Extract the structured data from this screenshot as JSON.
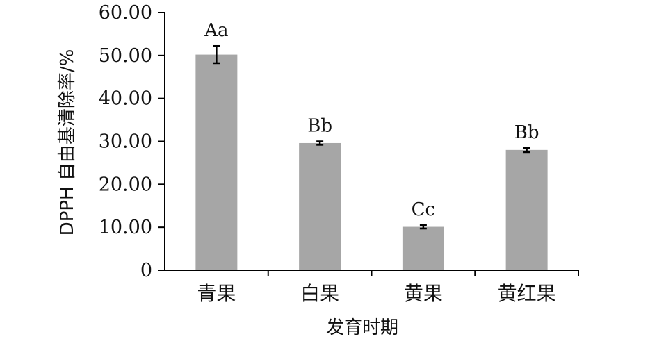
{
  "chart_data": {
    "type": "bar",
    "title": "",
    "xlabel": "发育时期",
    "ylabel": "DPPH 自由基清除率/%",
    "categories": [
      "青果",
      "白果",
      "黄果",
      "黄红果"
    ],
    "values": [
      50.2,
      29.6,
      10.1,
      28.0
    ],
    "errors": [
      2.0,
      0.4,
      0.4,
      0.5
    ],
    "significance_labels": [
      "Aa",
      "Bb",
      "Cc",
      "Bb"
    ],
    "ylim": [
      0,
      60
    ],
    "yticks": [
      "0",
      "10.00",
      "20.00",
      "30.00",
      "40.00",
      "50.00",
      "60.00"
    ],
    "grid": false,
    "legend": "none",
    "colors": {
      "bar": "#a6a6a6",
      "axis": "#000000",
      "error_bar": "#000000"
    }
  }
}
